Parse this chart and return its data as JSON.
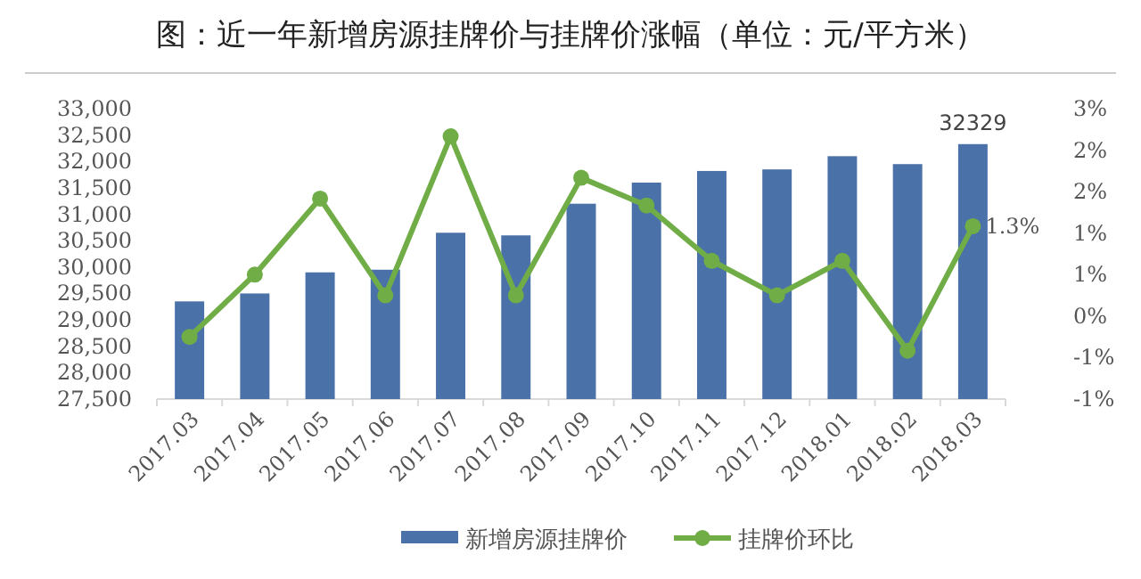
{
  "chart_data": {
    "type": "bar",
    "title": "图：近一年新增房源挂牌价与挂牌价涨幅（单位：元/平方米）",
    "categories": [
      "2017.03",
      "2017.04",
      "2017.05",
      "2017.06",
      "2017.07",
      "2017.08",
      "2017.09",
      "2017.10",
      "2017.11",
      "2017.12",
      "2018.01",
      "2018.02",
      "2018.03"
    ],
    "series": [
      {
        "name": "新增房源挂牌价",
        "color": "#4a71a8",
        "values": [
          29350,
          29500,
          29900,
          29950,
          30650,
          30600,
          31200,
          31600,
          31820,
          31850,
          32100,
          31950,
          32329
        ],
        "value_labels": [
          null,
          null,
          null,
          null,
          null,
          null,
          null,
          null,
          null,
          null,
          null,
          null,
          "32329"
        ]
      },
      {
        "name": "挂牌价环比",
        "type": "line",
        "axis": "y2",
        "color": "#70ad47",
        "marker": "circle",
        "values": [
          -0.3,
          0.6,
          1.7,
          0.3,
          2.6,
          0.3,
          2.0,
          1.6,
          0.8,
          0.3,
          0.8,
          -0.5,
          1.3
        ],
        "value_labels": [
          null,
          null,
          null,
          null,
          null,
          null,
          null,
          null,
          null,
          null,
          null,
          null,
          "1.3%"
        ]
      }
    ],
    "ylim": [
      27500,
      33000
    ],
    "yticks": [
      {
        "value": 27500,
        "label": "27,500"
      },
      {
        "value": 28000,
        "label": "28,000"
      },
      {
        "value": 28500,
        "label": "28,500"
      },
      {
        "value": 29000,
        "label": "29,000"
      },
      {
        "value": 29500,
        "label": "29,500"
      },
      {
        "value": 30000,
        "label": "30,000"
      },
      {
        "value": 30500,
        "label": "30,500"
      },
      {
        "value": 31000,
        "label": "31,000"
      },
      {
        "value": 31500,
        "label": "31,500"
      },
      {
        "value": 32000,
        "label": "32,000"
      },
      {
        "value": 32500,
        "label": "32,500"
      },
      {
        "value": 33000,
        "label": "33,000"
      }
    ],
    "y2lim": [
      -1.2,
      3
    ],
    "y2ticks": [
      {
        "value": -1.2,
        "label": "-1%"
      },
      {
        "value": -0.6,
        "label": "-1%"
      },
      {
        "value": 0,
        "label": "0%"
      },
      {
        "value": 0.6,
        "label": "1%"
      },
      {
        "value": 1.2,
        "label": "1%"
      },
      {
        "value": 1.8,
        "label": "2%"
      },
      {
        "value": 2.4,
        "label": "2%"
      },
      {
        "value": 3,
        "label": "3%"
      }
    ],
    "grid": false,
    "legend": "bottom"
  }
}
